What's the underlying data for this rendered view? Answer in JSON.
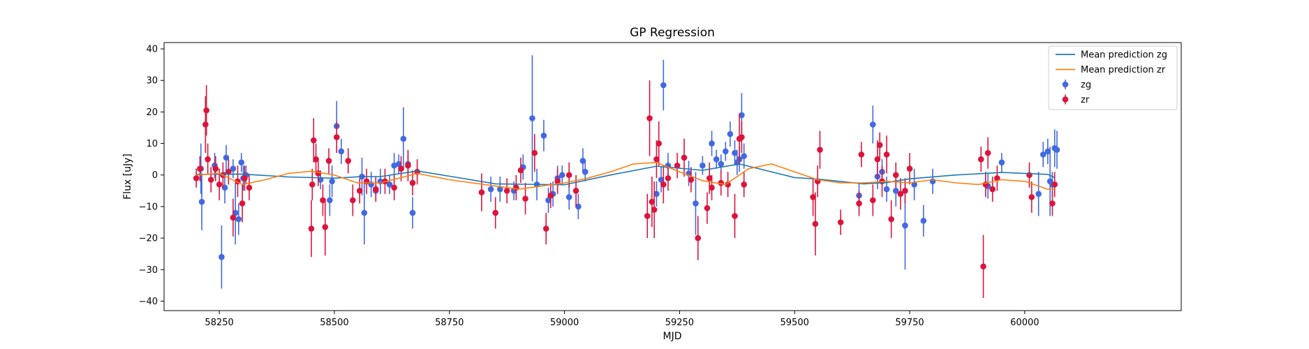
{
  "chart_data": {
    "type": "scatter",
    "title": "GP Regression",
    "xlabel": "MJD",
    "ylabel": "Flux [uJy]",
    "xlim": [
      58130,
      60340
    ],
    "ylim": [
      -43,
      42
    ],
    "xticks": [
      58250,
      58500,
      58750,
      59000,
      59250,
      59500,
      59750,
      60000
    ],
    "yticks": [
      -40,
      -30,
      -20,
      -10,
      0,
      10,
      20,
      30,
      40
    ],
    "grid": false,
    "legend_position": "top-right",
    "legend": [
      {
        "label": "Mean prediction zg",
        "kind": "line",
        "color": "#1f77b4"
      },
      {
        "label": "Mean prediction zr",
        "kind": "line",
        "color": "#ff7f0e"
      },
      {
        "label": "zg",
        "kind": "errorbar",
        "color": "#4169e1"
      },
      {
        "label": "zr",
        "kind": "errorbar",
        "color": "#dc143c"
      }
    ],
    "lines": [
      {
        "name": "Mean prediction zg",
        "color": "#1f77b4",
        "x": [
          58200,
          58300,
          58400,
          58500,
          58560,
          58600,
          58680,
          58760,
          58850,
          58950,
          59000,
          59100,
          59200,
          59300,
          59380,
          59500,
          59550,
          59650,
          59700,
          59750,
          59850,
          59950,
          60050,
          60065
        ],
        "y": [
          0.2,
          0.3,
          -0.6,
          -1.0,
          -0.5,
          -0.5,
          1.3,
          -0.6,
          -2.8,
          -3.0,
          -3.1,
          0.0,
          2.8,
          1.5,
          3.5,
          -0.8,
          -1.3,
          -2.8,
          -2.4,
          -1.2,
          0.0,
          0.8,
          0.2,
          -0.8
        ]
      },
      {
        "name": "Mean prediction zr",
        "color": "#ff7f0e",
        "x": [
          58200,
          58250,
          58300,
          58350,
          58400,
          58450,
          58500,
          58550,
          58600,
          58680,
          58750,
          58850,
          58900,
          58950,
          59000,
          59050,
          59100,
          59150,
          59200,
          59250,
          59300,
          59350,
          59400,
          59450,
          59500,
          59550,
          59600,
          59650,
          59700,
          59750,
          59800,
          59850,
          59900,
          59950,
          60000,
          60050,
          60065
        ],
        "y": [
          0.0,
          0.5,
          -3.0,
          -1.5,
          0.5,
          1.2,
          0.0,
          -2.5,
          -2.5,
          0.5,
          -1.5,
          -3.5,
          -4.5,
          -3.5,
          -2.5,
          -1.0,
          1.0,
          3.5,
          4.0,
          1.0,
          -1.8,
          -3.0,
          2.0,
          3.5,
          1.0,
          -1.5,
          -2.5,
          -2.5,
          -2.0,
          -2.5,
          -1.5,
          -2.5,
          -3.0,
          -1.5,
          -2.0,
          -4.5,
          -4.5
        ]
      }
    ],
    "series": [
      {
        "name": "zg",
        "color": "#4169e1",
        "x": [
          58210,
          58212,
          58240,
          58255,
          58262,
          58265,
          58270,
          58280,
          58285,
          58292,
          58298,
          58302,
          58308,
          58470,
          58490,
          58495,
          58505,
          58515,
          58560,
          58565,
          58580,
          58590,
          58600,
          58620,
          58630,
          58640,
          58650,
          58660,
          58670,
          58840,
          58860,
          58890,
          58910,
          58930,
          58940,
          58955,
          58965,
          58975,
          58985,
          58995,
          59010,
          59030,
          59040,
          59045,
          59200,
          59210,
          59215,
          59225,
          59270,
          59285,
          59300,
          59320,
          59330,
          59340,
          59350,
          59360,
          59370,
          59375,
          59380,
          59385,
          59390,
          59640,
          59670,
          59680,
          59690,
          59700,
          59720,
          59740,
          59760,
          59780,
          59800,
          59920,
          59950,
          60030,
          60040,
          60050,
          60055,
          60060,
          60065,
          60070
        ],
        "y": [
          2.0,
          -8.5,
          3.0,
          -26.0,
          -4.0,
          5.5,
          1.0,
          2.0,
          -12.0,
          -14.0,
          4.0,
          -1.0,
          0.0,
          -1.5,
          -8.0,
          -2.0,
          15.5,
          7.5,
          -0.5,
          -12.0,
          -3.0,
          -5.0,
          -2.0,
          -3.0,
          3.0,
          3.5,
          11.5,
          3.5,
          -12.0,
          -4.5,
          -4.5,
          -5.0,
          2.5,
          18.0,
          -3.0,
          12.5,
          -8.0,
          -6.0,
          -1.0,
          0.0,
          -7.0,
          -10.0,
          4.5,
          1.0,
          -6.0,
          -1.5,
          28.5,
          3.0,
          0.5,
          -9.0,
          3.0,
          10.0,
          5.0,
          3.5,
          7.5,
          13.0,
          7.0,
          4.0,
          5.0,
          19.0,
          6.0,
          -6.5,
          16.0,
          -0.5,
          1.0,
          -4.5,
          -5.0,
          -16.0,
          -3.0,
          -14.5,
          -2.0,
          -3.5,
          4.0,
          -6.0,
          6.5,
          7.5,
          -2.0,
          -3.0,
          8.5,
          8.0
        ],
        "yerr": [
          8,
          9,
          4,
          10,
          5,
          4,
          4,
          3,
          10,
          5,
          3,
          4,
          3,
          3,
          5,
          5,
          8,
          4,
          6,
          10,
          4,
          3,
          4,
          3,
          4,
          3,
          10,
          4,
          5,
          4,
          4,
          3,
          4,
          20,
          5,
          5,
          4,
          4,
          4,
          3,
          4,
          4,
          4,
          3,
          4,
          4,
          8,
          4,
          4,
          10,
          3,
          4,
          3,
          3,
          3,
          4,
          4,
          4,
          4,
          7,
          4,
          4,
          6,
          4,
          4,
          4,
          5,
          14,
          5,
          5,
          4,
          4,
          3,
          7,
          4,
          4,
          11,
          4,
          6,
          6
        ]
      },
      {
        "name": "zr",
        "color": "#dc143c",
        "x": [
          58200,
          58208,
          58220,
          58222,
          58225,
          58232,
          58242,
          58250,
          58258,
          58270,
          58280,
          58290,
          58300,
          58305,
          58315,
          58450,
          58452,
          58455,
          58460,
          58465,
          58475,
          58480,
          58488,
          58505,
          58530,
          58540,
          58555,
          58570,
          58590,
          58610,
          58630,
          58645,
          58660,
          58670,
          58680,
          58820,
          58850,
          58875,
          58895,
          58905,
          58915,
          58935,
          58960,
          58970,
          58985,
          59010,
          59025,
          59180,
          59185,
          59190,
          59195,
          59200,
          59205,
          59215,
          59225,
          59245,
          59260,
          59275,
          59290,
          59310,
          59315,
          59320,
          59340,
          59355,
          59370,
          59380,
          59385,
          59390,
          59540,
          59545,
          59550,
          59555,
          59600,
          59640,
          59645,
          59670,
          59680,
          59685,
          59690,
          59700,
          59710,
          59720,
          59730,
          59740,
          59750,
          59905,
          59910,
          59915,
          59920,
          59930,
          59940,
          60010,
          60015,
          60060,
          60065
        ],
        "y": [
          -1.0,
          2.0,
          16.0,
          20.5,
          5.0,
          -1.5,
          2.0,
          -3.0,
          0.0,
          1.0,
          -13.5,
          -2.0,
          -9.0,
          -1.0,
          -4.0,
          -17.0,
          -3.0,
          11.0,
          5.0,
          0.5,
          -8.0,
          -16.5,
          4.5,
          12.0,
          4.5,
          -8.0,
          -5.0,
          -2.0,
          -4.5,
          -2.0,
          -4.0,
          2.0,
          3.0,
          -2.5,
          1.0,
          -5.5,
          -12.0,
          -5.0,
          -4.0,
          1.5,
          -7.5,
          7.0,
          -17.0,
          -6.5,
          -2.0,
          0.0,
          -5.0,
          -13.0,
          18.0,
          -8.5,
          -11.0,
          5.0,
          10.0,
          -3.0,
          -1.0,
          3.0,
          5.5,
          -1.5,
          -20.0,
          -10.5,
          -1.0,
          -4.0,
          -2.5,
          -3.0,
          -13.0,
          11.5,
          12.0,
          -3.0,
          -7.0,
          -15.5,
          -2.0,
          8.0,
          -15.0,
          -9.0,
          6.5,
          -8.0,
          5.0,
          9.5,
          -2.0,
          6.5,
          -14.0,
          0.0,
          -6.0,
          -5.0,
          2.0,
          5.0,
          -29.0,
          -3.0,
          7.0,
          -4.5,
          -1.0,
          0.0,
          -7.0,
          -9.0,
          -3.0
        ],
        "yerr": [
          3,
          4,
          9,
          8,
          5,
          4,
          4,
          5,
          4,
          4,
          6,
          5,
          6,
          4,
          4,
          9,
          5,
          7,
          5,
          4,
          5,
          9,
          4,
          5,
          4,
          5,
          4,
          4,
          4,
          4,
          4,
          4,
          5,
          4,
          4,
          6,
          5,
          4,
          4,
          4,
          5,
          6,
          5,
          4,
          4,
          4,
          5,
          7,
          12,
          8,
          9,
          6,
          7,
          6,
          4,
          4,
          6,
          4,
          7,
          5,
          5,
          4,
          4,
          4,
          7,
          8,
          5,
          4,
          6,
          10,
          5,
          6,
          4,
          4,
          4,
          5,
          6,
          4,
          5,
          6,
          6,
          4,
          5,
          4,
          5,
          4,
          10,
          4,
          5,
          4,
          4,
          4,
          5,
          4,
          4
        ]
      }
    ]
  }
}
